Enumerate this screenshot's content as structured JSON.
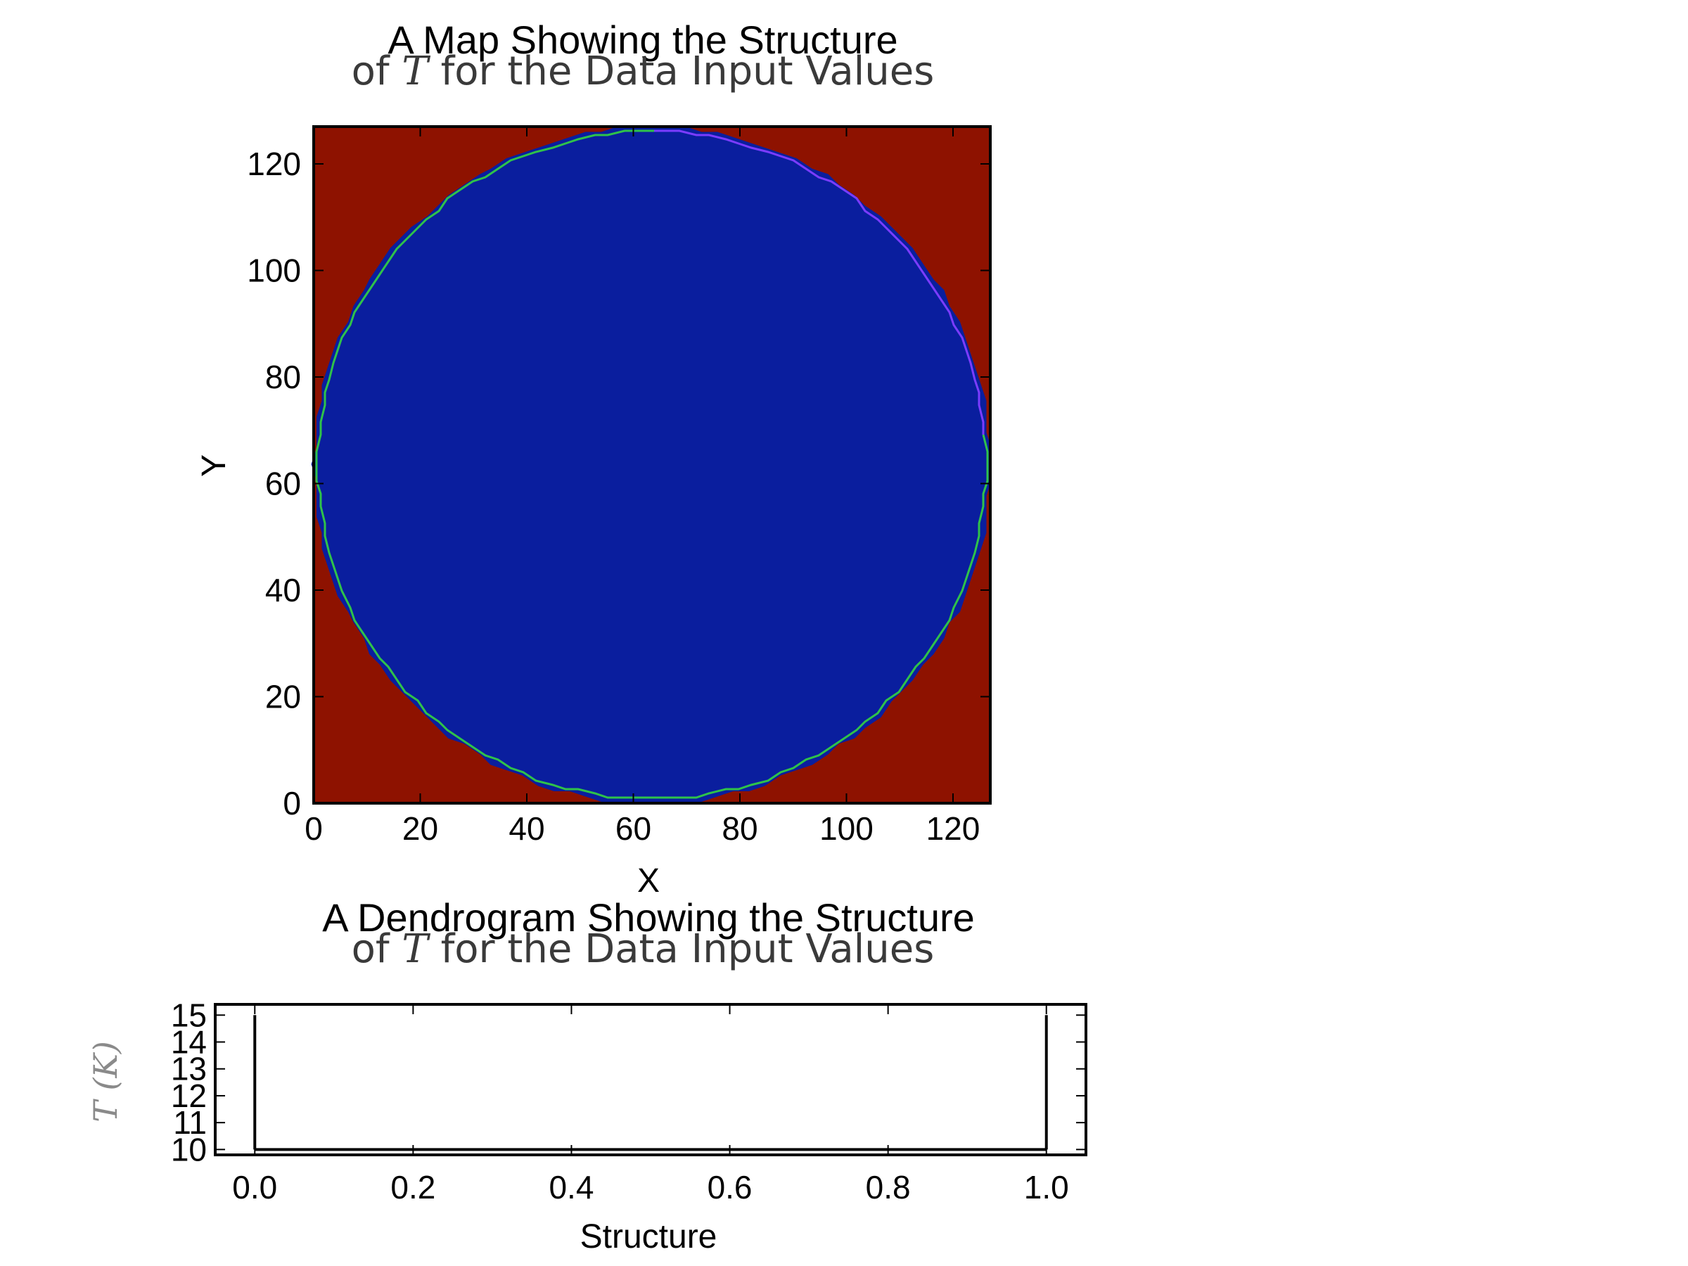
{
  "chart_data": [
    {
      "type": "heatmap",
      "title": "A Map Showing the Structure",
      "subtitle": {
        "pre": "of ",
        "symbol": "T",
        "post": " for the Data Input Values"
      },
      "xlabel": "X",
      "ylabel": "Y",
      "xlim": [
        0,
        127
      ],
      "ylim": [
        0,
        127
      ],
      "xticks": [
        0,
        20,
        40,
        60,
        80,
        100,
        120
      ],
      "yticks": [
        0,
        20,
        40,
        60,
        80,
        100,
        120
      ],
      "background_color": "#8e1200",
      "structure": {
        "shape": "disk",
        "center": [
          63.5,
          63.5
        ],
        "radius": 63.5,
        "fill_color": "#0a1e9e"
      },
      "contours": [
        {
          "color": "#2fc24a",
          "from_angle_deg": 90,
          "to_angle_deg": 365
        },
        {
          "color": "#7b3cff",
          "from_angle_deg": 5,
          "to_angle_deg": 90
        }
      ]
    },
    {
      "type": "line",
      "title": "A Dendrogram Showing the Structure",
      "subtitle": {
        "pre": "of ",
        "symbol": "T",
        "post": " for the Data Input Values"
      },
      "xlabel": "Structure",
      "ylabel": "T (K)",
      "xlim": [
        -0.05,
        1.05
      ],
      "ylim": [
        9.8,
        15.4
      ],
      "xticks": [
        "0.0",
        "0.2",
        "0.4",
        "0.6",
        "0.8",
        "1.0"
      ],
      "xtick_values": [
        0.0,
        0.2,
        0.4,
        0.6,
        0.8,
        1.0
      ],
      "yticks": [
        10,
        11,
        12,
        13,
        14,
        15
      ],
      "segments": [
        {
          "x": [
            0.0,
            0.0
          ],
          "y": [
            10.0,
            15.0
          ]
        },
        {
          "x": [
            0.0,
            1.0
          ],
          "y": [
            10.0,
            10.0
          ]
        },
        {
          "x": [
            1.0,
            1.0
          ],
          "y": [
            10.0,
            15.0
          ]
        }
      ]
    }
  ]
}
